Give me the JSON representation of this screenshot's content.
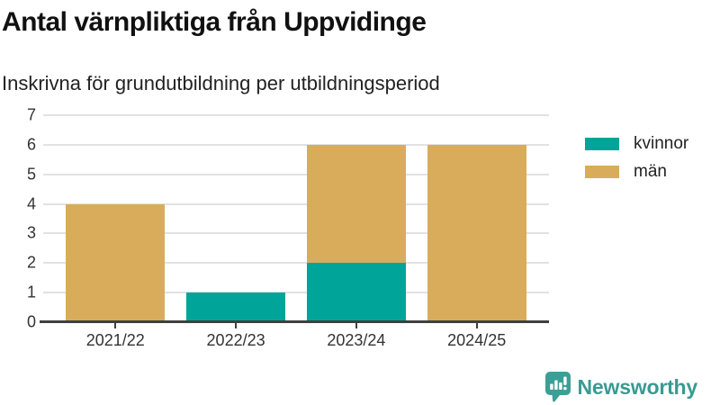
{
  "header": {
    "title": "Antal värnpliktiga från Uppvidinge",
    "subtitle": "Inskrivna för grundutbildning per utbildningsperiod"
  },
  "branding": {
    "name": "Newsworthy",
    "icon": "bar-chart-speech-bubble-icon",
    "color": "#3a9a92"
  },
  "colors": {
    "axis": "#3f3f40",
    "gridline": "#e2e2e4",
    "tick_text": "#333333"
  },
  "chart_data": {
    "type": "bar",
    "stacked": true,
    "title": "Antal värnpliktiga från Uppvidinge",
    "subtitle": "Inskrivna för grundutbildning per utbildningsperiod",
    "categories": [
      "2021/22",
      "2022/23",
      "2023/24",
      "2024/25"
    ],
    "series": [
      {
        "name": "kvinnor",
        "color": "#00a499",
        "values": [
          0,
          1,
          2,
          0
        ]
      },
      {
        "name": "män",
        "color": "#d9ac5c",
        "values": [
          4,
          0,
          4,
          6
        ]
      }
    ],
    "totals": [
      4,
      1,
      6,
      6
    ],
    "xlabel": "",
    "ylabel": "",
    "ylim": [
      0,
      7
    ],
    "yticks": [
      0,
      1,
      2,
      3,
      4,
      5,
      6,
      7
    ],
    "grid": true,
    "legend_position": "right"
  }
}
